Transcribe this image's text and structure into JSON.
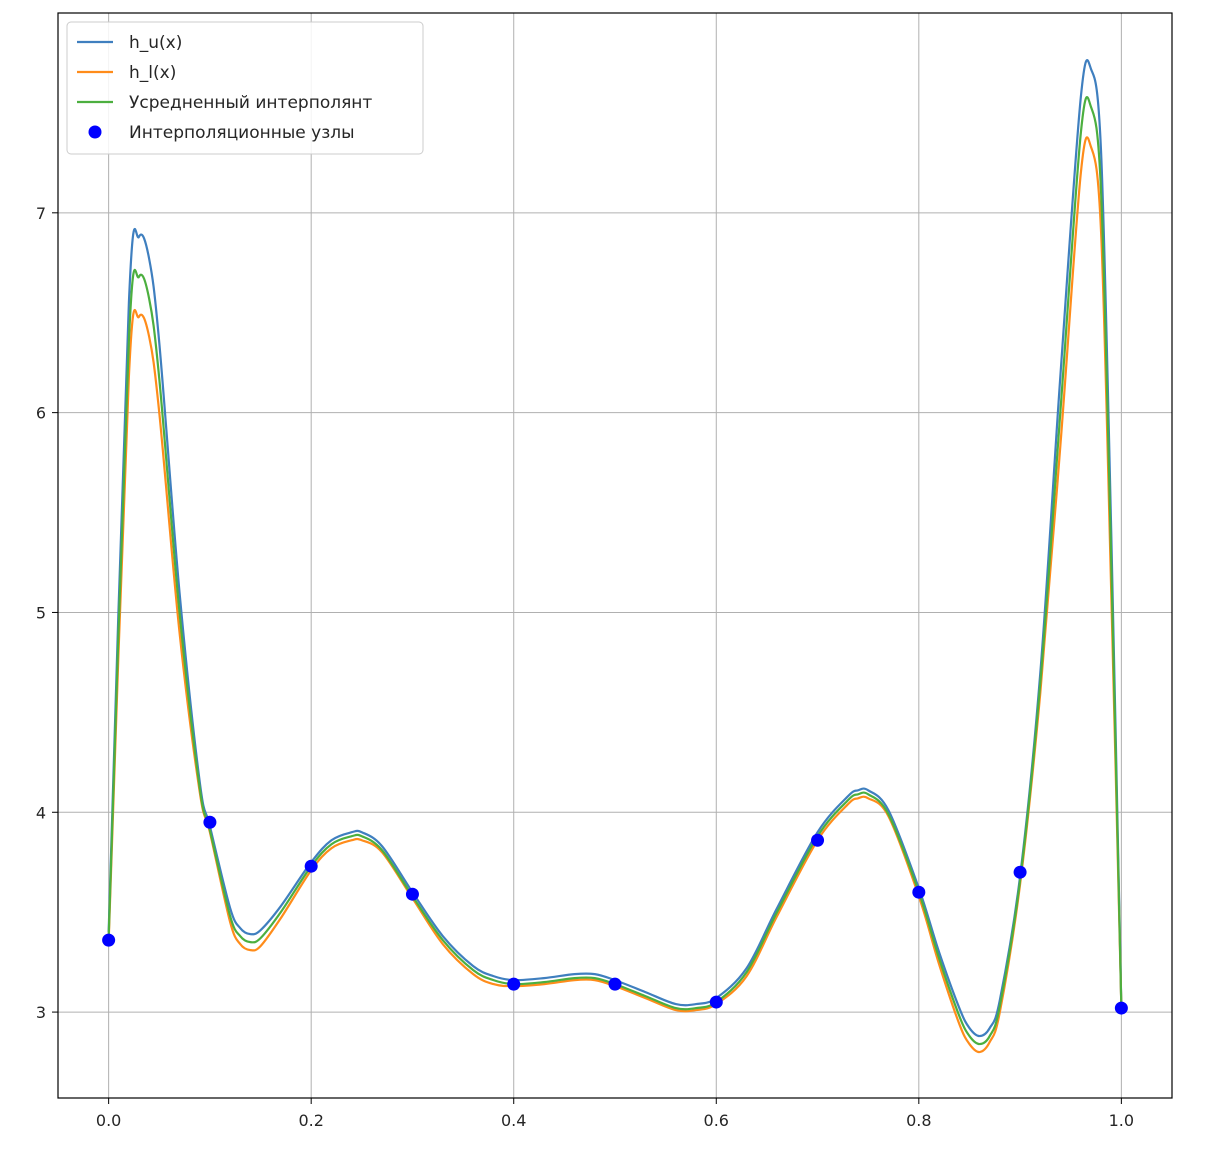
{
  "chart_data": {
    "type": "line",
    "xlim": [
      -0.05,
      1.05
    ],
    "ylim": [
      2.57,
      8.0
    ],
    "x_ticks": [
      "0.0",
      "0.2",
      "0.4",
      "0.6",
      "0.8",
      "1.0"
    ],
    "x_tick_values": [
      0.0,
      0.2,
      0.4,
      0.6,
      0.8,
      1.0
    ],
    "y_ticks": [
      "3",
      "4",
      "5",
      "6",
      "7"
    ],
    "y_tick_values": [
      3,
      4,
      5,
      6,
      7
    ],
    "grid": true,
    "legend_position": "top-left",
    "series": [
      {
        "name": "h_u(x)",
        "type": "line",
        "color": "#3f7fbf",
        "x": [
          0.0,
          0.02,
          0.03,
          0.04,
          0.05,
          0.07,
          0.09,
          0.1,
          0.12,
          0.13,
          0.14,
          0.15,
          0.17,
          0.2,
          0.22,
          0.24,
          0.25,
          0.27,
          0.3,
          0.33,
          0.36,
          0.38,
          0.4,
          0.43,
          0.46,
          0.48,
          0.5,
          0.53,
          0.56,
          0.58,
          0.6,
          0.63,
          0.66,
          0.7,
          0.73,
          0.74,
          0.75,
          0.77,
          0.8,
          0.82,
          0.84,
          0.85,
          0.86,
          0.87,
          0.88,
          0.9,
          0.92,
          0.94,
          0.96,
          0.97,
          0.98,
          0.99,
          1.0
        ],
        "y": [
          3.4,
          6.55,
          6.88,
          6.77,
          6.35,
          5.1,
          4.15,
          3.93,
          3.52,
          3.42,
          3.39,
          3.41,
          3.53,
          3.75,
          3.86,
          3.9,
          3.9,
          3.83,
          3.6,
          3.38,
          3.23,
          3.18,
          3.16,
          3.17,
          3.19,
          3.19,
          3.16,
          3.1,
          3.04,
          3.04,
          3.07,
          3.22,
          3.52,
          3.9,
          4.08,
          4.11,
          4.11,
          4.01,
          3.62,
          3.3,
          3.02,
          2.92,
          2.88,
          2.92,
          3.06,
          3.68,
          4.7,
          6.2,
          7.58,
          7.72,
          7.3,
          5.4,
          3.02
        ]
      },
      {
        "name": "h_l(x)",
        "type": "line",
        "color": "#ff8c1a",
        "x": [
          0.0,
          0.02,
          0.03,
          0.04,
          0.05,
          0.07,
          0.09,
          0.1,
          0.12,
          0.13,
          0.14,
          0.15,
          0.17,
          0.2,
          0.22,
          0.24,
          0.25,
          0.27,
          0.3,
          0.33,
          0.36,
          0.38,
          0.4,
          0.43,
          0.46,
          0.48,
          0.5,
          0.53,
          0.56,
          0.58,
          0.6,
          0.63,
          0.66,
          0.7,
          0.73,
          0.74,
          0.75,
          0.77,
          0.8,
          0.82,
          0.84,
          0.85,
          0.86,
          0.87,
          0.88,
          0.9,
          0.92,
          0.94,
          0.96,
          0.97,
          0.98,
          0.99,
          1.0
        ],
        "y": [
          3.35,
          6.18,
          6.48,
          6.38,
          6.0,
          4.9,
          4.1,
          3.9,
          3.45,
          3.34,
          3.31,
          3.33,
          3.47,
          3.71,
          3.82,
          3.86,
          3.86,
          3.8,
          3.57,
          3.34,
          3.19,
          3.14,
          3.13,
          3.14,
          3.16,
          3.16,
          3.13,
          3.07,
          3.01,
          3.01,
          3.04,
          3.18,
          3.48,
          3.86,
          4.04,
          4.07,
          4.07,
          3.98,
          3.58,
          3.24,
          2.94,
          2.84,
          2.8,
          2.85,
          3.0,
          3.64,
          4.6,
          5.85,
          7.2,
          7.33,
          6.9,
          5.1,
          3.02
        ]
      },
      {
        "name": "Усредненный интерполянт",
        "type": "line",
        "color": "#4caf3f",
        "x": [
          0.0,
          0.02,
          0.03,
          0.04,
          0.05,
          0.07,
          0.09,
          0.1,
          0.12,
          0.13,
          0.14,
          0.15,
          0.17,
          0.2,
          0.22,
          0.24,
          0.25,
          0.27,
          0.3,
          0.33,
          0.36,
          0.38,
          0.4,
          0.43,
          0.46,
          0.48,
          0.5,
          0.53,
          0.56,
          0.58,
          0.6,
          0.63,
          0.66,
          0.7,
          0.73,
          0.74,
          0.75,
          0.77,
          0.8,
          0.82,
          0.84,
          0.85,
          0.86,
          0.87,
          0.88,
          0.9,
          0.92,
          0.94,
          0.96,
          0.97,
          0.98,
          0.99,
          1.0
        ],
        "y": [
          3.37,
          6.36,
          6.68,
          6.57,
          6.17,
          5.0,
          4.12,
          3.91,
          3.48,
          3.38,
          3.35,
          3.37,
          3.5,
          3.73,
          3.84,
          3.88,
          3.88,
          3.81,
          3.58,
          3.36,
          3.21,
          3.16,
          3.14,
          3.15,
          3.17,
          3.17,
          3.14,
          3.08,
          3.02,
          3.02,
          3.05,
          3.2,
          3.5,
          3.88,
          4.06,
          4.09,
          4.09,
          3.99,
          3.6,
          3.27,
          2.98,
          2.88,
          2.84,
          2.88,
          3.03,
          3.66,
          4.65,
          6.02,
          7.4,
          7.53,
          7.1,
          5.25,
          3.02
        ]
      },
      {
        "name": "Интерполяционные узлы",
        "type": "scatter",
        "color": "#0000ff",
        "x": [
          0.0,
          0.1,
          0.2,
          0.3,
          0.4,
          0.5,
          0.6,
          0.7,
          0.8,
          0.9,
          1.0
        ],
        "y": [
          3.36,
          3.95,
          3.73,
          3.59,
          3.14,
          3.14,
          3.05,
          3.86,
          3.6,
          3.7,
          3.02
        ]
      }
    ]
  }
}
